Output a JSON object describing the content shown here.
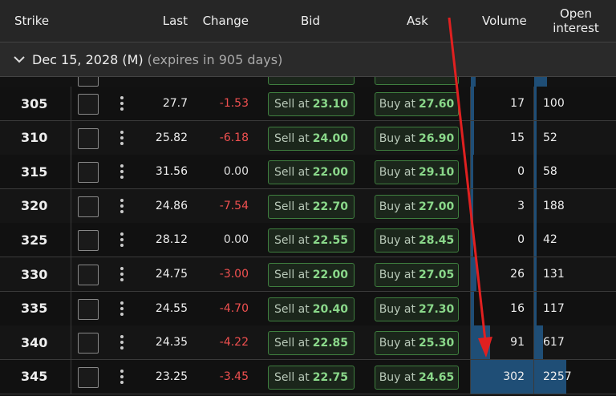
{
  "header": {
    "columns": [
      "Strike",
      "Last",
      "Change",
      "Bid",
      "Ask",
      "Volume",
      "Open interest"
    ]
  },
  "expiry": {
    "date": "Dec 15, 2028 (M)",
    "note": "(expires in 905 days)"
  },
  "rows": [
    {
      "strike": "305",
      "last": "27.7",
      "change": "-1.53",
      "bid_label": "Sell at",
      "bid": "23.10",
      "ask_label": "Buy at",
      "ask": "27.60",
      "volume": "17",
      "open_interest": "100"
    },
    {
      "strike": "310",
      "last": "25.82",
      "change": "-6.18",
      "bid_label": "Sell at",
      "bid": "24.00",
      "ask_label": "Buy at",
      "ask": "26.90",
      "volume": "15",
      "open_interest": "52"
    },
    {
      "strike": "315",
      "last": "31.56",
      "change": "0.00",
      "bid_label": "Sell at",
      "bid": "22.00",
      "ask_label": "Buy at",
      "ask": "29.10",
      "volume": "0",
      "open_interest": "58"
    },
    {
      "strike": "320",
      "last": "24.86",
      "change": "-7.54",
      "bid_label": "Sell at",
      "bid": "22.70",
      "ask_label": "Buy at",
      "ask": "27.00",
      "volume": "3",
      "open_interest": "188"
    },
    {
      "strike": "325",
      "last": "28.12",
      "change": "0.00",
      "bid_label": "Sell at",
      "bid": "22.55",
      "ask_label": "Buy at",
      "ask": "28.45",
      "volume": "0",
      "open_interest": "42"
    },
    {
      "strike": "330",
      "last": "24.75",
      "change": "-3.00",
      "bid_label": "Sell at",
      "bid": "22.00",
      "ask_label": "Buy at",
      "ask": "27.05",
      "volume": "26",
      "open_interest": "131"
    },
    {
      "strike": "335",
      "last": "24.55",
      "change": "-4.70",
      "bid_label": "Sell at",
      "bid": "20.40",
      "ask_label": "Buy at",
      "ask": "27.30",
      "volume": "16",
      "open_interest": "117"
    },
    {
      "strike": "340",
      "last": "24.35",
      "change": "-4.22",
      "bid_label": "Sell at",
      "bid": "22.85",
      "ask_label": "Buy at",
      "ask": "25.30",
      "volume": "91",
      "open_interest": "617"
    },
    {
      "strike": "345",
      "last": "23.25",
      "change": "-3.45",
      "bid_label": "Sell at",
      "bid": "22.75",
      "ask_label": "Buy at",
      "ask": "24.65",
      "volume": "302",
      "open_interest": "2257"
    }
  ]
}
